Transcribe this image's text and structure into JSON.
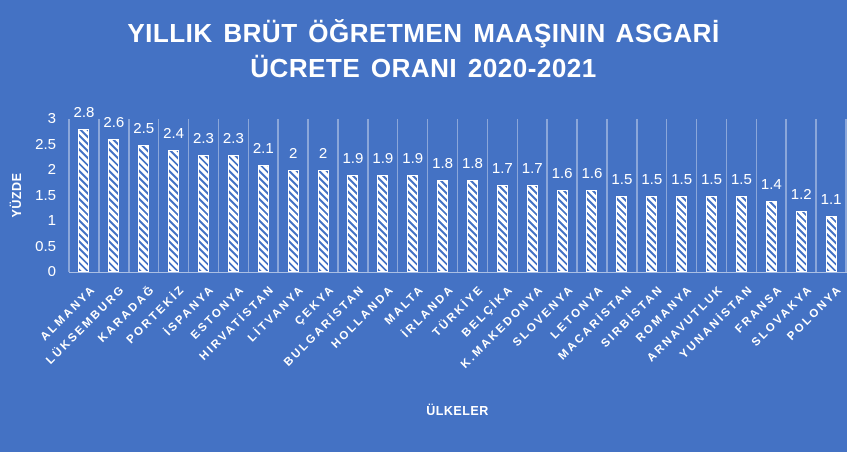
{
  "title": {
    "lines": [
      "YILLIK BRÜT ÖĞRETMEN MAAŞININ ASGARİ",
      "ÜCRETE ORANI 2020-2021"
    ]
  },
  "colors": {
    "background": "#4472C4",
    "text": "#FFFFFF",
    "gridline": "rgba(255,255,255,0.38)",
    "axis_line": "rgba(255,255,255,0.55)",
    "bar_fill": "#FFFFFF",
    "bar_stripe": "#4472C4"
  },
  "chart_data": {
    "type": "bar",
    "title": "YILLIK BRÜT ÖĞRETMEN MAAŞININ ASGARİ ÜCRETE ORANI 2020-2021",
    "xlabel": "ÜLKELER",
    "ylabel": "YÜZDE",
    "ylim": [
      0,
      3
    ],
    "y_ticks": [
      "0",
      "0.5",
      "1",
      "1.5",
      "2",
      "2.5",
      "3"
    ],
    "grid": "vertical-category-gridlines",
    "legend": "none",
    "bar_pattern": "white bars with diagonal blue hatch stripes",
    "categories": [
      "ALMANYA",
      "LÜKSEMBURG",
      "KARADAĞ",
      "PORTEKİZ",
      "İSPANYA",
      "ESTONYA",
      "HIRVATİSTAN",
      "LİTVANYA",
      "ÇEKYA",
      "BULGARİSTAN",
      "HOLLANDA",
      "MALTA",
      "İRLANDA",
      "TÜRKİYE",
      "BELÇİKA",
      "K.MAKEDONYA",
      "SLOVENYA",
      "LETONYA",
      "MACARİSTAN",
      "SIRBİSTAN",
      "ROMANYA",
      "ARNAVUTLUK",
      "YUNANİSTAN",
      "FRANSA",
      "SLOVAKYA",
      "POLONYA"
    ],
    "values": [
      2.8,
      2.6,
      2.5,
      2.4,
      2.3,
      2.3,
      2.1,
      2,
      2,
      1.9,
      1.9,
      1.9,
      1.8,
      1.8,
      1.7,
      1.7,
      1.6,
      1.6,
      1.5,
      1.5,
      1.5,
      1.5,
      1.5,
      1.4,
      1.2,
      1.1
    ],
    "value_labels": [
      "2.8",
      "2.6",
      "2.5",
      "2.4",
      "2.3",
      "2.3",
      "2.1",
      "2",
      "2",
      "1.9",
      "1.9",
      "1.9",
      "1.8",
      "1.8",
      "1.7",
      "1.7",
      "1.6",
      "1.6",
      "1.5",
      "1.5",
      "1.5",
      "1.5",
      "1.5",
      "1.4",
      "1.2",
      "1.1"
    ]
  }
}
